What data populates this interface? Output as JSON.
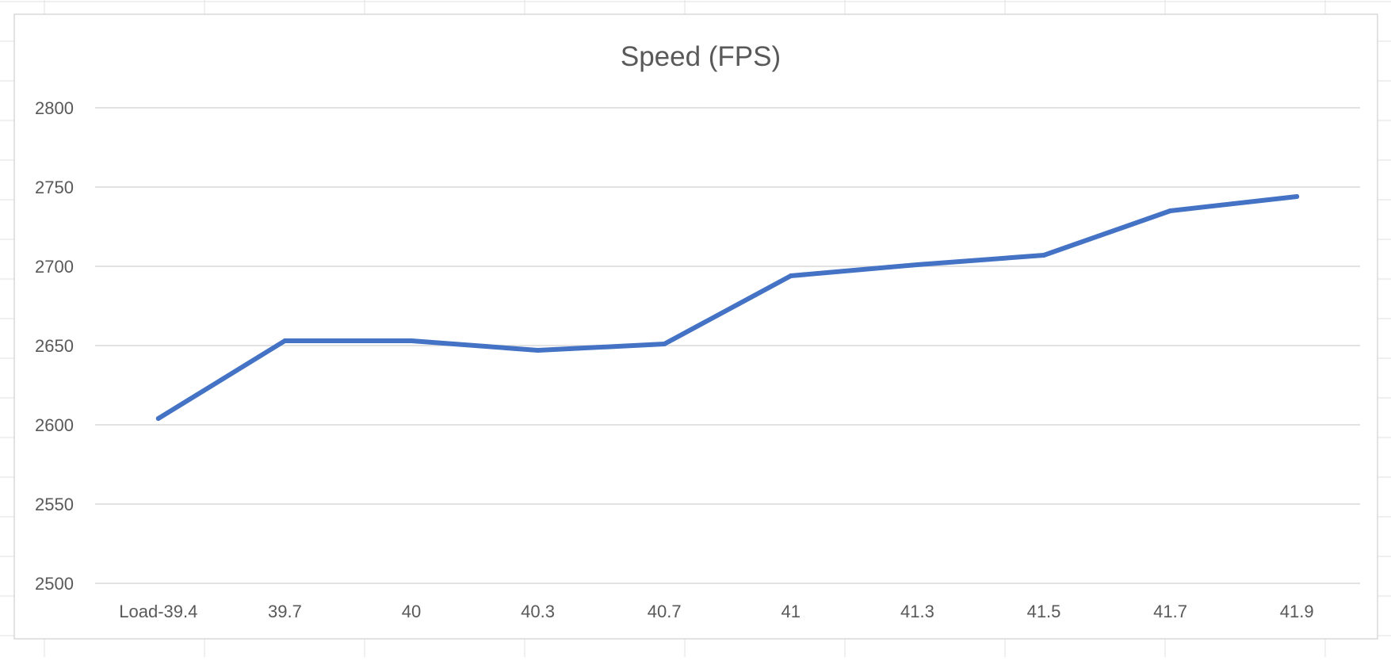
{
  "chart_data": {
    "type": "line",
    "title": "Speed (FPS)",
    "categories": [
      "Load-39.4",
      "39.7",
      "40",
      "40.3",
      "40.7",
      "41",
      "41.3",
      "41.5",
      "41.7",
      "41.9"
    ],
    "series": [
      {
        "values": [
          2604,
          2653,
          2653,
          2647,
          2651,
          2694,
          2701,
          2707,
          2735,
          2744
        ]
      }
    ],
    "ylim": [
      2500,
      2800
    ],
    "yticks": [
      2500,
      2550,
      2600,
      2650,
      2700,
      2750,
      2800
    ],
    "grid": true,
    "legend": "none",
    "colors": {
      "line": "#4472C4",
      "gridline": "#D9D9D9",
      "text": "#595959",
      "frame": "#D9D9D9",
      "sheet_grid": "#E2E2E2"
    }
  }
}
